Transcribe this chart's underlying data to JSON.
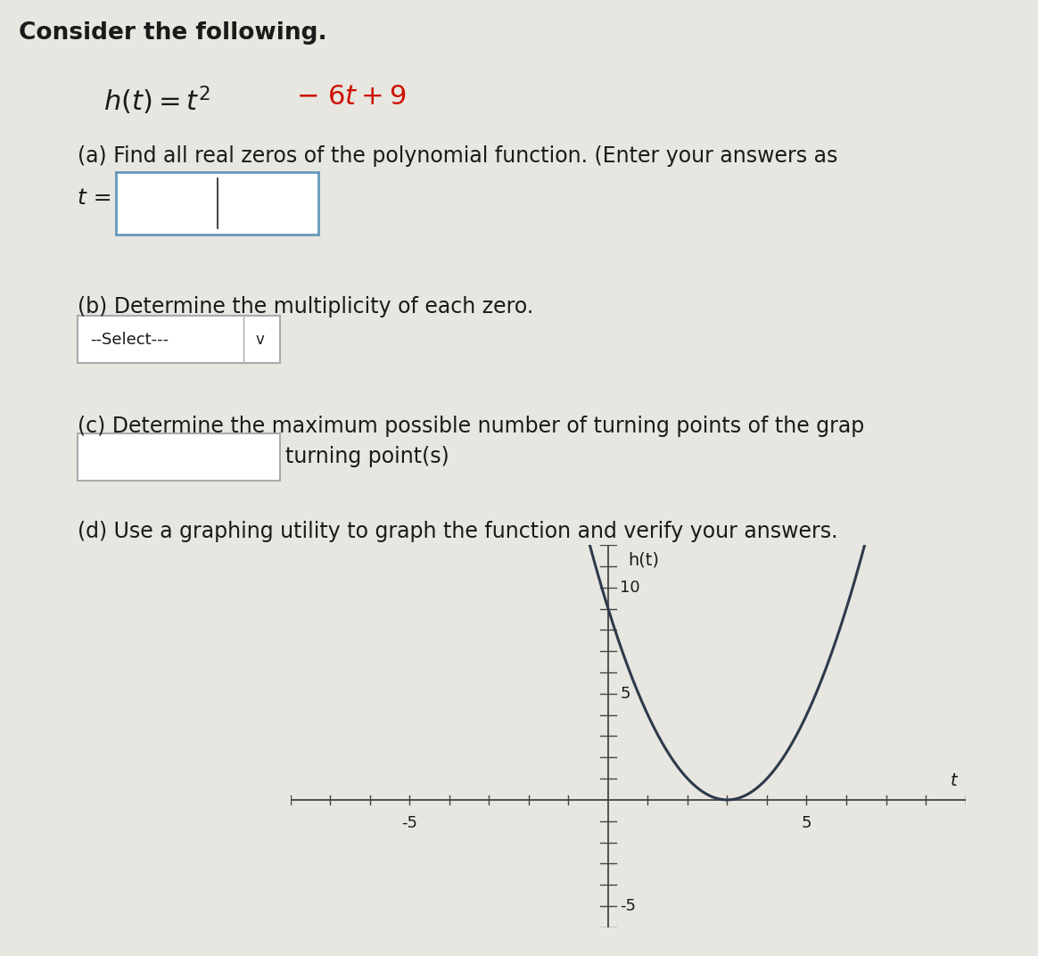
{
  "bg_color": "#e8e6e0",
  "panel_color": "#f0eeea",
  "text_color": "#1a1a1a",
  "title_text": "Consider the following.",
  "part_a_text": "(a) Find all real zeros of the polynomial function. (Enter your answers as",
  "part_a_label": "t =",
  "part_b_text": "(b) Determine the multiplicity of each zero.",
  "part_b_dropdown": "--Select---",
  "part_c_text": "(c) Determine the maximum possible number of turning points of the grap",
  "part_c_suffix": "turning point(s)",
  "part_d_text": "(d) Use a graphing utility to graph the function and verify your answers.",
  "graph_xlabel": "t",
  "graph_ylabel": "h(t)",
  "graph_xlim": [
    -8,
    9
  ],
  "graph_ylim": [
    -6,
    12
  ],
  "graph_xticks": [
    -5,
    5
  ],
  "graph_yticks": [
    -5,
    5,
    10
  ],
  "curve_color": "#2d3a4a",
  "axis_color": "#444444",
  "formula_color_black": "#1a1a1a",
  "formula_color_red": "#cc1100",
  "input_box_border": "#6699bb",
  "dd_box_border": "#aaaaaa",
  "tp_box_border": "#aaaaaa",
  "font_size_title": 19,
  "font_size_formula": 22,
  "font_size_parts": 17,
  "font_size_graph_label": 13,
  "font_size_tick": 13
}
